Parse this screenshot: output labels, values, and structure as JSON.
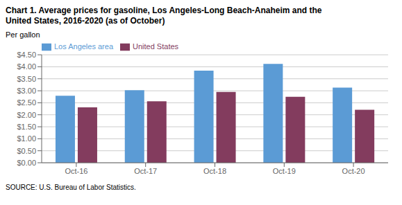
{
  "chart_data": {
    "type": "bar",
    "title": "Chart 1. Average prices for gasoline, Los Angeles-Long Beach-Anaheim and the",
    "subtitle": "United States, 2016-2020 (as of October)",
    "y_label": "Per gallon",
    "annotations": [
      "SOURCE: U.S. Bureau of Labor Statistics."
    ],
    "categories": [
      "Oct-16",
      "Oct-17",
      "Oct-18",
      "Oct-19",
      "Oct-20"
    ],
    "series": [
      {
        "name": "Los Angeles area",
        "color": "#5B9BD5",
        "values": [
          2.79,
          3.02,
          3.84,
          4.12,
          3.13
        ]
      },
      {
        "name": "United States",
        "color": "#833C5E",
        "values": [
          2.31,
          2.56,
          2.95,
          2.75,
          2.21
        ]
      }
    ],
    "ylim": [
      0,
      4.5
    ],
    "yticks": [
      {
        "value": 0.0,
        "label": "$0.00"
      },
      {
        "value": 0.5,
        "label": "$0.50"
      },
      {
        "value": 1.0,
        "label": "$1.00"
      },
      {
        "value": 1.5,
        "label": "$1.50"
      },
      {
        "value": 2.0,
        "label": "$2.00"
      },
      {
        "value": 2.5,
        "label": "$2.50"
      },
      {
        "value": 3.0,
        "label": "$3.00"
      },
      {
        "value": 3.5,
        "label": "$3.50"
      },
      {
        "value": 4.0,
        "label": "$4.00"
      },
      {
        "value": 4.5,
        "label": "$4.50"
      }
    ],
    "grid": true,
    "legend": "upper left"
  }
}
